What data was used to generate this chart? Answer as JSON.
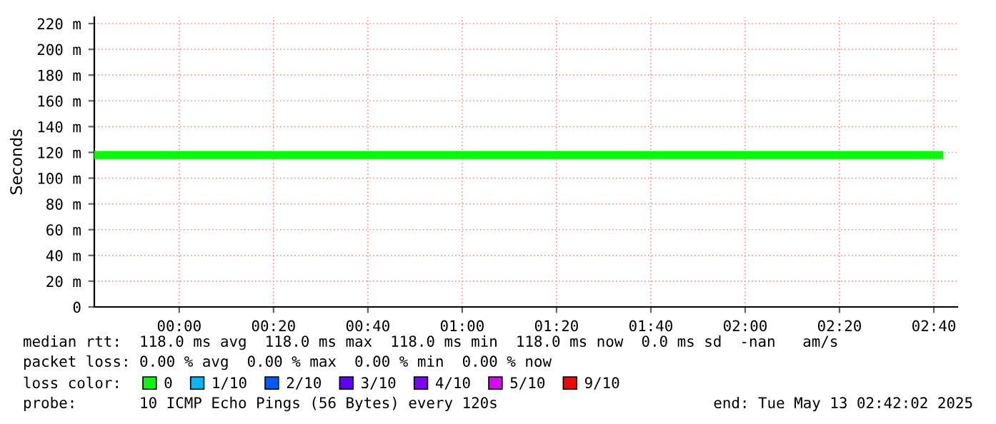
{
  "chart_data": {
    "type": "line",
    "ylabel": "Seconds",
    "x": [
      -0.3,
      2.7
    ],
    "series": [
      {
        "name": "0",
        "color": "#00ff00",
        "values": [
          118,
          118
        ]
      },
      {
        "name": "1/10",
        "color": "#00b8ff",
        "values": [
          null,
          null
        ]
      },
      {
        "name": "2/10",
        "color": "#0059ff",
        "values": [
          null,
          null
        ]
      },
      {
        "name": "3/10",
        "color": "#5e00ff",
        "values": [
          null,
          null
        ]
      },
      {
        "name": "4/10",
        "color": "#7e00ff",
        "values": [
          null,
          null
        ]
      },
      {
        "name": "5/10",
        "color": "#dd00ff",
        "values": [
          null,
          null
        ]
      },
      {
        "name": "9/10",
        "color": "#ff0000",
        "values": [
          null,
          null
        ]
      }
    ],
    "legend": "bottom",
    "legend_title": "loss color:",
    "xlim": [
      -0.3,
      2.75
    ],
    "ylim": [
      0,
      225
    ],
    "xticks": [
      {
        "value": 0,
        "label": "00:00"
      },
      {
        "value": 0.3333,
        "label": "00:20"
      },
      {
        "value": 0.6667,
        "label": "00:40"
      },
      {
        "value": 1,
        "label": "01:00"
      },
      {
        "value": 1.3333,
        "label": "01:20"
      },
      {
        "value": 1.6667,
        "label": "01:40"
      },
      {
        "value": 2,
        "label": "02:00"
      },
      {
        "value": 2.3333,
        "label": "02:20"
      },
      {
        "value": 2.6667,
        "label": "02:40"
      }
    ],
    "yticks": [
      0,
      {
        "value": 20,
        "label": "20 m"
      },
      {
        "value": 40,
        "label": "40 m"
      },
      {
        "value": 60,
        "label": "60 m"
      },
      {
        "value": 80,
        "label": "80 m"
      },
      {
        "value": 100,
        "label": "100 m"
      },
      {
        "value": 120,
        "label": "120 m"
      },
      {
        "value": 140,
        "label": "140 m"
      },
      {
        "value": 160,
        "label": "160 m"
      },
      {
        "value": 180,
        "label": "180 m"
      },
      {
        "value": 200,
        "label": "200 m"
      },
      {
        "value": 220,
        "label": "220 m"
      }
    ],
    "grid": true,
    "marker": "none",
    "line_style": "solid",
    "annotations": [
      "median rtt:  118.0 ms avg  118.0 ms max  118.0 ms min  118.0 ms now  0.0 ms sd  -nan   am/s",
      "packet loss: 0.00 % avg  0.00 % max  0.00 % min  0.00 % now",
      "probe:       10 ICMP Echo Pings (56 Bytes) every 120s",
      "end: Tue May 13 02:42:02 2025"
    ]
  }
}
